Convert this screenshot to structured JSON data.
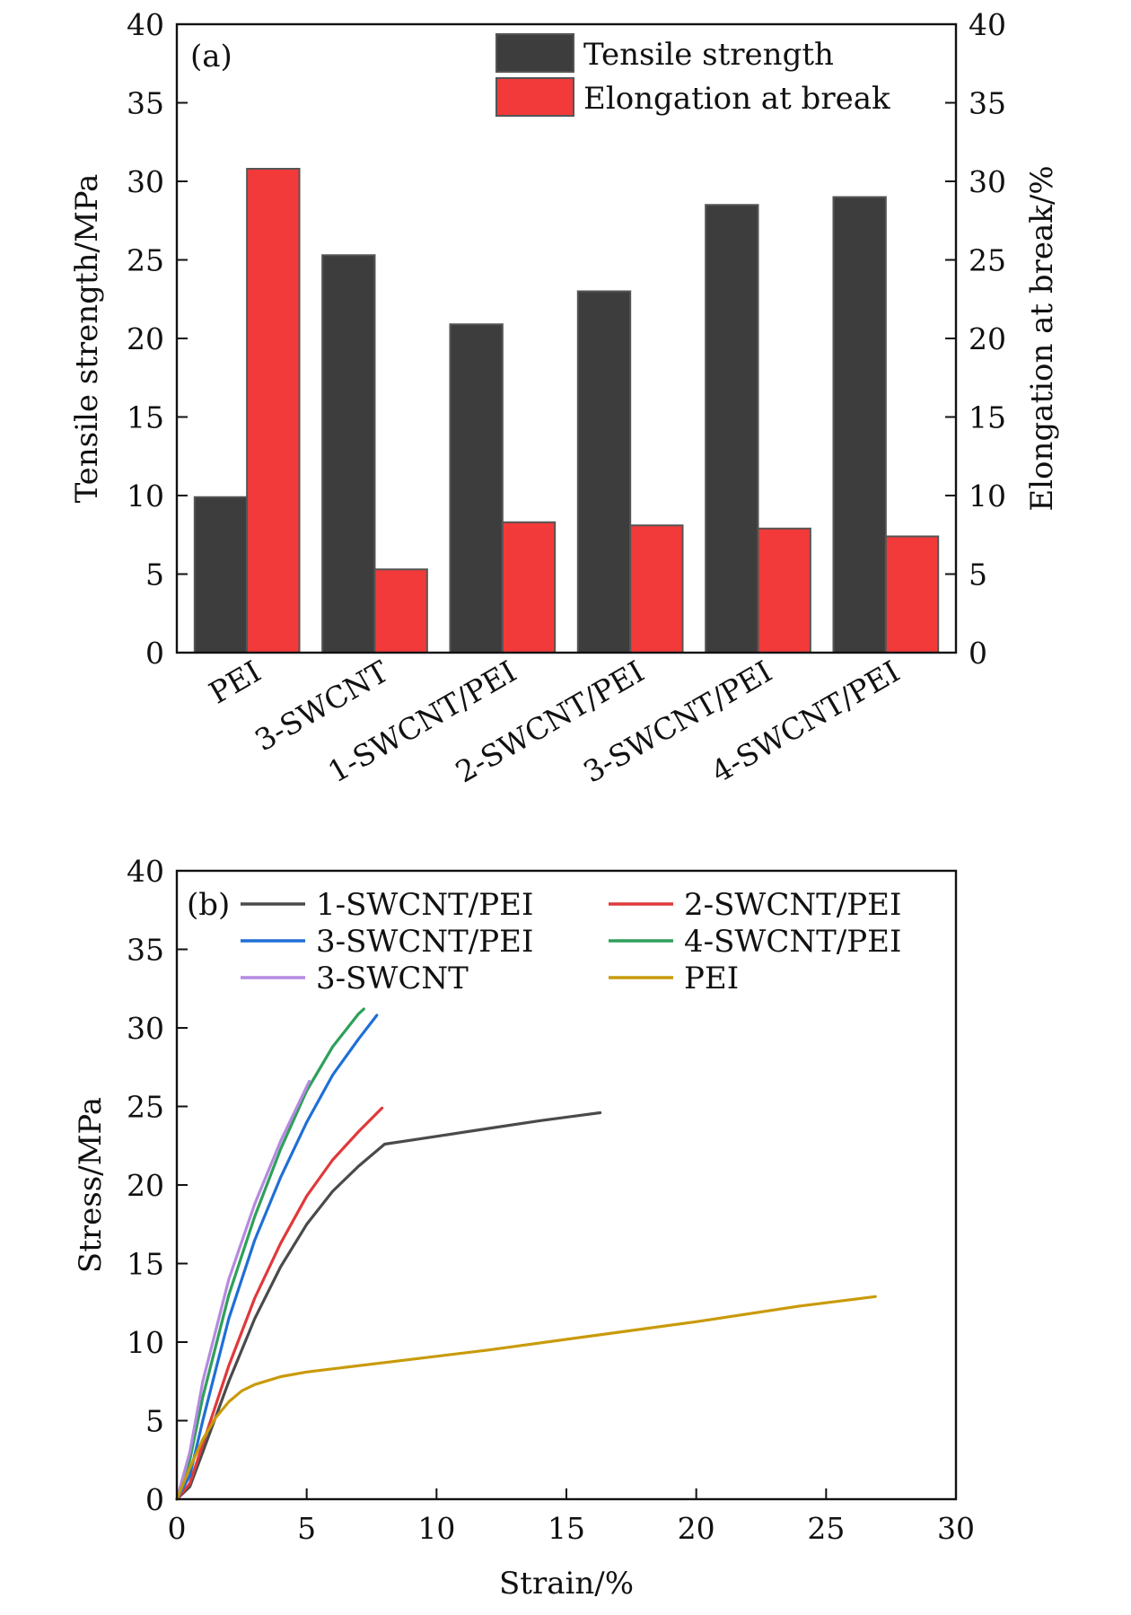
{
  "chart_data": [
    {
      "panel_label": "(a)",
      "type": "bar",
      "categories": [
        "PEI",
        "3-SWCNT",
        "1-SWCNT/PEI",
        "2-SWCNT/PEI",
        "3-SWCNT/PEI",
        "4-SWCNT/PEI"
      ],
      "series": [
        {
          "name": "Tensile strength",
          "axis": "left",
          "color": "#3d3d3d",
          "values": [
            9.9,
            25.3,
            20.9,
            23.0,
            28.5,
            29.0
          ]
        },
        {
          "name": "Elongation at break",
          "axis": "right",
          "color": "#f23a3a",
          "values": [
            30.8,
            5.3,
            8.3,
            8.1,
            7.9,
            7.4
          ]
        }
      ],
      "ylabel": "Tensile strength/MPa",
      "y2label": "Elongation at break/%",
      "ylim": [
        0,
        40
      ],
      "y2lim": [
        0,
        40
      ],
      "yticks": [
        0,
        5,
        10,
        15,
        20,
        25,
        30,
        35,
        40
      ],
      "legend_position": "top-right"
    },
    {
      "panel_label": "(b)",
      "type": "line",
      "xlabel": "Strain/%",
      "ylabel": "Stress/MPa",
      "xlim": [
        0,
        30
      ],
      "ylim": [
        0,
        40
      ],
      "xticks": [
        0,
        5,
        10,
        15,
        20,
        25,
        30
      ],
      "yticks": [
        0,
        5,
        10,
        15,
        20,
        25,
        30,
        35,
        40
      ],
      "legend_position": "top",
      "series": [
        {
          "name": "1-SWCNT/PEI",
          "color": "#4a4a4a",
          "x": [
            0,
            0.5,
            1,
            2,
            3,
            4,
            5,
            6,
            7,
            8,
            10,
            12,
            14,
            16.3
          ],
          "y": [
            0,
            0.8,
            3,
            7.5,
            11.5,
            14.8,
            17.5,
            19.6,
            21.2,
            22.6,
            23.1,
            23.6,
            24.1,
            24.6
          ]
        },
        {
          "name": "2-SWCNT/PEI",
          "color": "#e0393b",
          "x": [
            0,
            0.5,
            1,
            2,
            3,
            4,
            5,
            6,
            7,
            7.9
          ],
          "y": [
            0,
            1,
            3.5,
            8.5,
            12.8,
            16.3,
            19.3,
            21.6,
            23.4,
            24.9
          ]
        },
        {
          "name": "3-SWCNT/PEI",
          "color": "#1f6fd6",
          "x": [
            0,
            0.5,
            1,
            2,
            3,
            4,
            5,
            6,
            7,
            7.7
          ],
          "y": [
            0,
            1.5,
            5,
            11.5,
            16.5,
            20.5,
            24,
            27,
            29.3,
            30.8
          ]
        },
        {
          "name": "4-SWCNT/PEI",
          "color": "#2ea05a",
          "x": [
            0,
            0.5,
            1,
            2,
            3,
            4,
            5,
            6,
            7,
            7.2
          ],
          "y": [
            0,
            2.5,
            6.5,
            13,
            18,
            22.3,
            26,
            28.8,
            30.9,
            31.2
          ]
        },
        {
          "name": "3-SWCNT",
          "color": "#b58ae0",
          "x": [
            0,
            0.5,
            1,
            2,
            3,
            4,
            5.1
          ],
          "y": [
            0,
            3,
            7.5,
            14,
            18.8,
            22.8,
            26.6
          ]
        },
        {
          "name": "PEI",
          "color": "#c99a0a",
          "x": [
            0,
            0.5,
            1,
            1.5,
            2,
            2.5,
            3,
            4,
            5,
            8,
            12,
            16,
            20,
            24,
            26.9
          ],
          "y": [
            0,
            2,
            3.8,
            5.2,
            6.2,
            6.9,
            7.3,
            7.8,
            8.1,
            8.7,
            9.5,
            10.4,
            11.3,
            12.3,
            12.9
          ]
        }
      ]
    }
  ]
}
